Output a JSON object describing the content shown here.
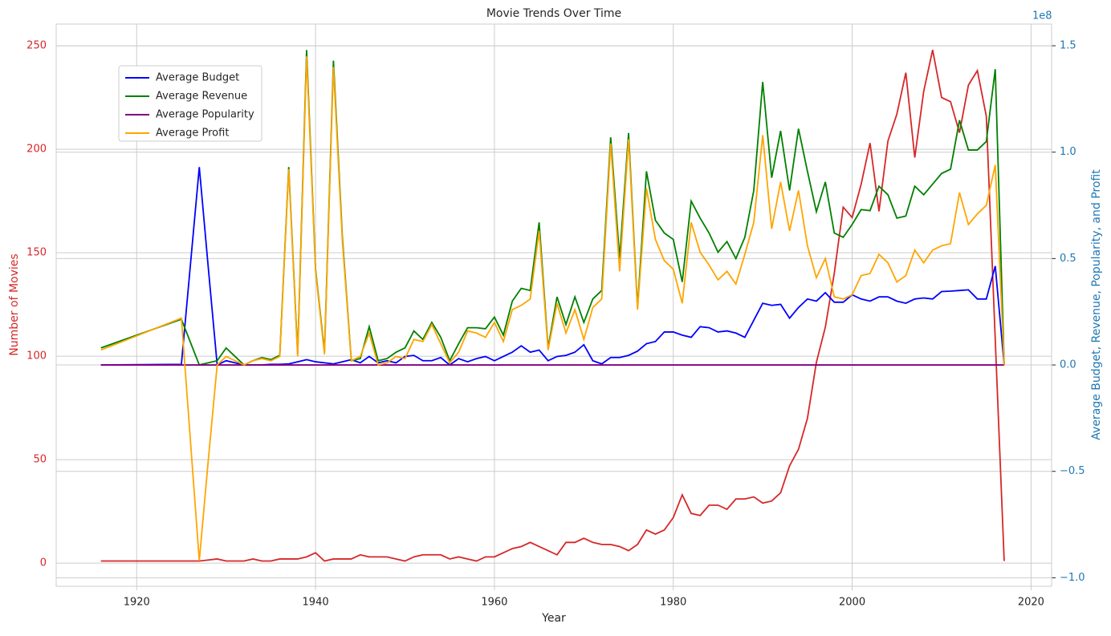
{
  "chart_data": {
    "type": "line",
    "title": "Movie Trends Over Time",
    "xlabel": "Year",
    "ylabel": "Number of Movies",
    "y2label": "Average Budget, Revenue, Popularity, and Profit",
    "y2_offset_label": "1e8",
    "x": [
      1916,
      1925,
      1927,
      1928,
      1929,
      1930,
      1931,
      1932,
      1933,
      1934,
      1935,
      1936,
      1937,
      1938,
      1939,
      1940,
      1941,
      1942,
      1943,
      1944,
      1945,
      1946,
      1947,
      1948,
      1949,
      1950,
      1951,
      1952,
      1953,
      1954,
      1955,
      1956,
      1957,
      1958,
      1959,
      1960,
      1961,
      1962,
      1963,
      1964,
      1965,
      1966,
      1967,
      1968,
      1969,
      1970,
      1971,
      1972,
      1973,
      1974,
      1975,
      1976,
      1977,
      1978,
      1979,
      1980,
      1981,
      1982,
      1983,
      1984,
      1985,
      1986,
      1987,
      1988,
      1989,
      1990,
      1991,
      1992,
      1993,
      1994,
      1995,
      1996,
      1997,
      1998,
      1999,
      2000,
      2001,
      2002,
      2003,
      2004,
      2005,
      2006,
      2007,
      2008,
      2009,
      2010,
      2011,
      2012,
      2013,
      2014,
      2015,
      2016,
      2017
    ],
    "series": [
      {
        "color": "#d62728",
        "values": [
          1,
          1,
          1,
          1.5,
          2,
          1,
          1,
          1,
          2,
          1,
          1,
          2,
          2,
          2,
          3,
          5,
          1,
          2,
          2,
          2,
          4,
          3,
          3,
          3,
          2,
          1,
          3,
          4,
          4,
          4,
          2,
          3,
          2,
          1,
          3,
          3,
          5,
          7,
          8,
          10,
          8,
          6,
          4,
          10,
          10,
          12,
          10,
          9,
          9,
          8,
          6,
          9,
          16,
          14,
          16,
          22,
          33,
          24,
          23,
          28,
          28,
          26,
          31,
          31,
          32,
          29,
          30,
          34,
          47,
          55,
          70,
          97,
          114,
          140,
          172,
          167,
          183,
          203,
          170,
          204,
          217,
          237,
          196,
          228,
          248,
          225,
          223,
          208,
          231,
          238,
          216,
          108,
          1
        ]
      },
      {
        "name": "Average Budget",
        "color": "#0000ff",
        "axis": "y2",
        "values": [
          0.0,
          0.003,
          0.93,
          0.46,
          0.0,
          0.02,
          0.01,
          0.0,
          0.0,
          0.0,
          0.003,
          0.003,
          0.005,
          0.015,
          0.025,
          0.015,
          0.01,
          0.005,
          0.015,
          0.025,
          0.01,
          0.04,
          0.01,
          0.02,
          0.01,
          0.04,
          0.045,
          0.02,
          0.02,
          0.035,
          0.0,
          0.03,
          0.015,
          0.03,
          0.04,
          0.02,
          0.04,
          0.06,
          0.09,
          0.06,
          0.07,
          0.02,
          0.04,
          0.045,
          0.06,
          0.095,
          0.02,
          0.005,
          0.035,
          0.035,
          0.045,
          0.065,
          0.1,
          0.11,
          0.155,
          0.155,
          0.14,
          0.13,
          0.18,
          0.175,
          0.155,
          0.16,
          0.15,
          0.13,
          0.21,
          0.29,
          0.28,
          0.285,
          0.22,
          0.27,
          0.31,
          0.3,
          0.34,
          0.295,
          0.295,
          0.33,
          0.31,
          0.3,
          0.32,
          0.32,
          0.3,
          0.29,
          0.31,
          0.315,
          0.31,
          0.345,
          0.347,
          0.35,
          0.353,
          0.31,
          0.31,
          0.465,
          0.0
        ]
      },
      {
        "name": "Average Revenue",
        "color": "#008000",
        "axis": "y2",
        "values": [
          0.08,
          0.215,
          0.0,
          0.01,
          0.02,
          0.08,
          0.04,
          0.0,
          0.02,
          0.035,
          0.025,
          0.045,
          0.93,
          0.05,
          1.48,
          0.45,
          0.06,
          1.43,
          0.6,
          0.02,
          0.03,
          0.18,
          0.02,
          0.03,
          0.06,
          0.08,
          0.16,
          0.12,
          0.2,
          0.13,
          0.02,
          0.1,
          0.175,
          0.175,
          0.17,
          0.225,
          0.14,
          0.3,
          0.36,
          0.35,
          0.67,
          0.08,
          0.32,
          0.19,
          0.32,
          0.2,
          0.31,
          0.35,
          1.07,
          0.5,
          1.09,
          0.27,
          0.91,
          0.68,
          0.62,
          0.59,
          0.39,
          0.77,
          0.69,
          0.62,
          0.53,
          0.58,
          0.5,
          0.6,
          0.82,
          1.33,
          0.88,
          1.1,
          0.82,
          1.11,
          0.91,
          0.72,
          0.86,
          0.62,
          0.6,
          0.66,
          0.73,
          0.725,
          0.84,
          0.8,
          0.69,
          0.7,
          0.84,
          0.8,
          0.85,
          0.9,
          0.92,
          1.15,
          1.01,
          1.01,
          1.05,
          1.39,
          0.0
        ]
      },
      {
        "name": "Average Popularity",
        "color": "#800080",
        "axis": "y2",
        "values": [
          0,
          0,
          0,
          0,
          0,
          0,
          0,
          0,
          0,
          0,
          0,
          0,
          0,
          0,
          0,
          0,
          0,
          0,
          0,
          0,
          0,
          0,
          0,
          0,
          0,
          0,
          0,
          0,
          0,
          0,
          0,
          0,
          0,
          0,
          0,
          0,
          0,
          0,
          0,
          0,
          0,
          0,
          0,
          0,
          0,
          0,
          0,
          0,
          0,
          0,
          0,
          0,
          0,
          0,
          0,
          0,
          0,
          0,
          0,
          0,
          0,
          0,
          0,
          0,
          0,
          0,
          0,
          0,
          0,
          0,
          0,
          0,
          0,
          0,
          0,
          0,
          0,
          0,
          0,
          0,
          0,
          0,
          0,
          0,
          0,
          0,
          0,
          0,
          0,
          0,
          0,
          0,
          0
        ]
      },
      {
        "name": "Average Profit",
        "color": "#ffa500",
        "axis": "y2",
        "values": [
          0.07,
          0.22,
          -0.92,
          -0.45,
          0.0,
          0.04,
          0.02,
          0.0,
          0.02,
          0.03,
          0.02,
          0.04,
          0.92,
          0.04,
          1.45,
          0.44,
          0.05,
          1.4,
          0.58,
          0.02,
          0.04,
          0.15,
          0.0,
          0.01,
          0.04,
          0.03,
          0.12,
          0.11,
          0.19,
          0.1,
          0.01,
          0.06,
          0.16,
          0.15,
          0.13,
          0.2,
          0.11,
          0.26,
          0.28,
          0.31,
          0.63,
          0.07,
          0.29,
          0.15,
          0.26,
          0.12,
          0.27,
          0.31,
          1.04,
          0.44,
          1.06,
          0.26,
          0.83,
          0.59,
          0.49,
          0.45,
          0.29,
          0.67,
          0.53,
          0.47,
          0.4,
          0.44,
          0.38,
          0.52,
          0.67,
          1.08,
          0.64,
          0.86,
          0.63,
          0.82,
          0.56,
          0.41,
          0.5,
          0.32,
          0.31,
          0.33,
          0.42,
          0.43,
          0.52,
          0.48,
          0.39,
          0.42,
          0.54,
          0.48,
          0.54,
          0.56,
          0.57,
          0.81,
          0.66,
          0.71,
          0.75,
          0.94,
          0.0
        ]
      }
    ],
    "xlim": [
      1911,
      2022.3
    ],
    "xticks": [
      1920,
      1940,
      1960,
      1980,
      2000,
      2020
    ],
    "ylim": [
      -11.2,
      260.5
    ],
    "yticks": [
      0,
      50,
      100,
      150,
      200,
      250
    ],
    "y2lim": [
      -1.04,
      1.602
    ],
    "y2ticks": [
      {
        "value": -1,
        "label": "−1.0"
      },
      {
        "value": -0.5,
        "label": "−0.5"
      },
      {
        "value": 0,
        "label": "0.0"
      },
      0.5,
      {
        "value": 1,
        "label": "1.0"
      },
      1.5
    ],
    "grid": true,
    "legend": "upper left",
    "ycolor": "#d62728",
    "y2color": "#1f77b4"
  }
}
